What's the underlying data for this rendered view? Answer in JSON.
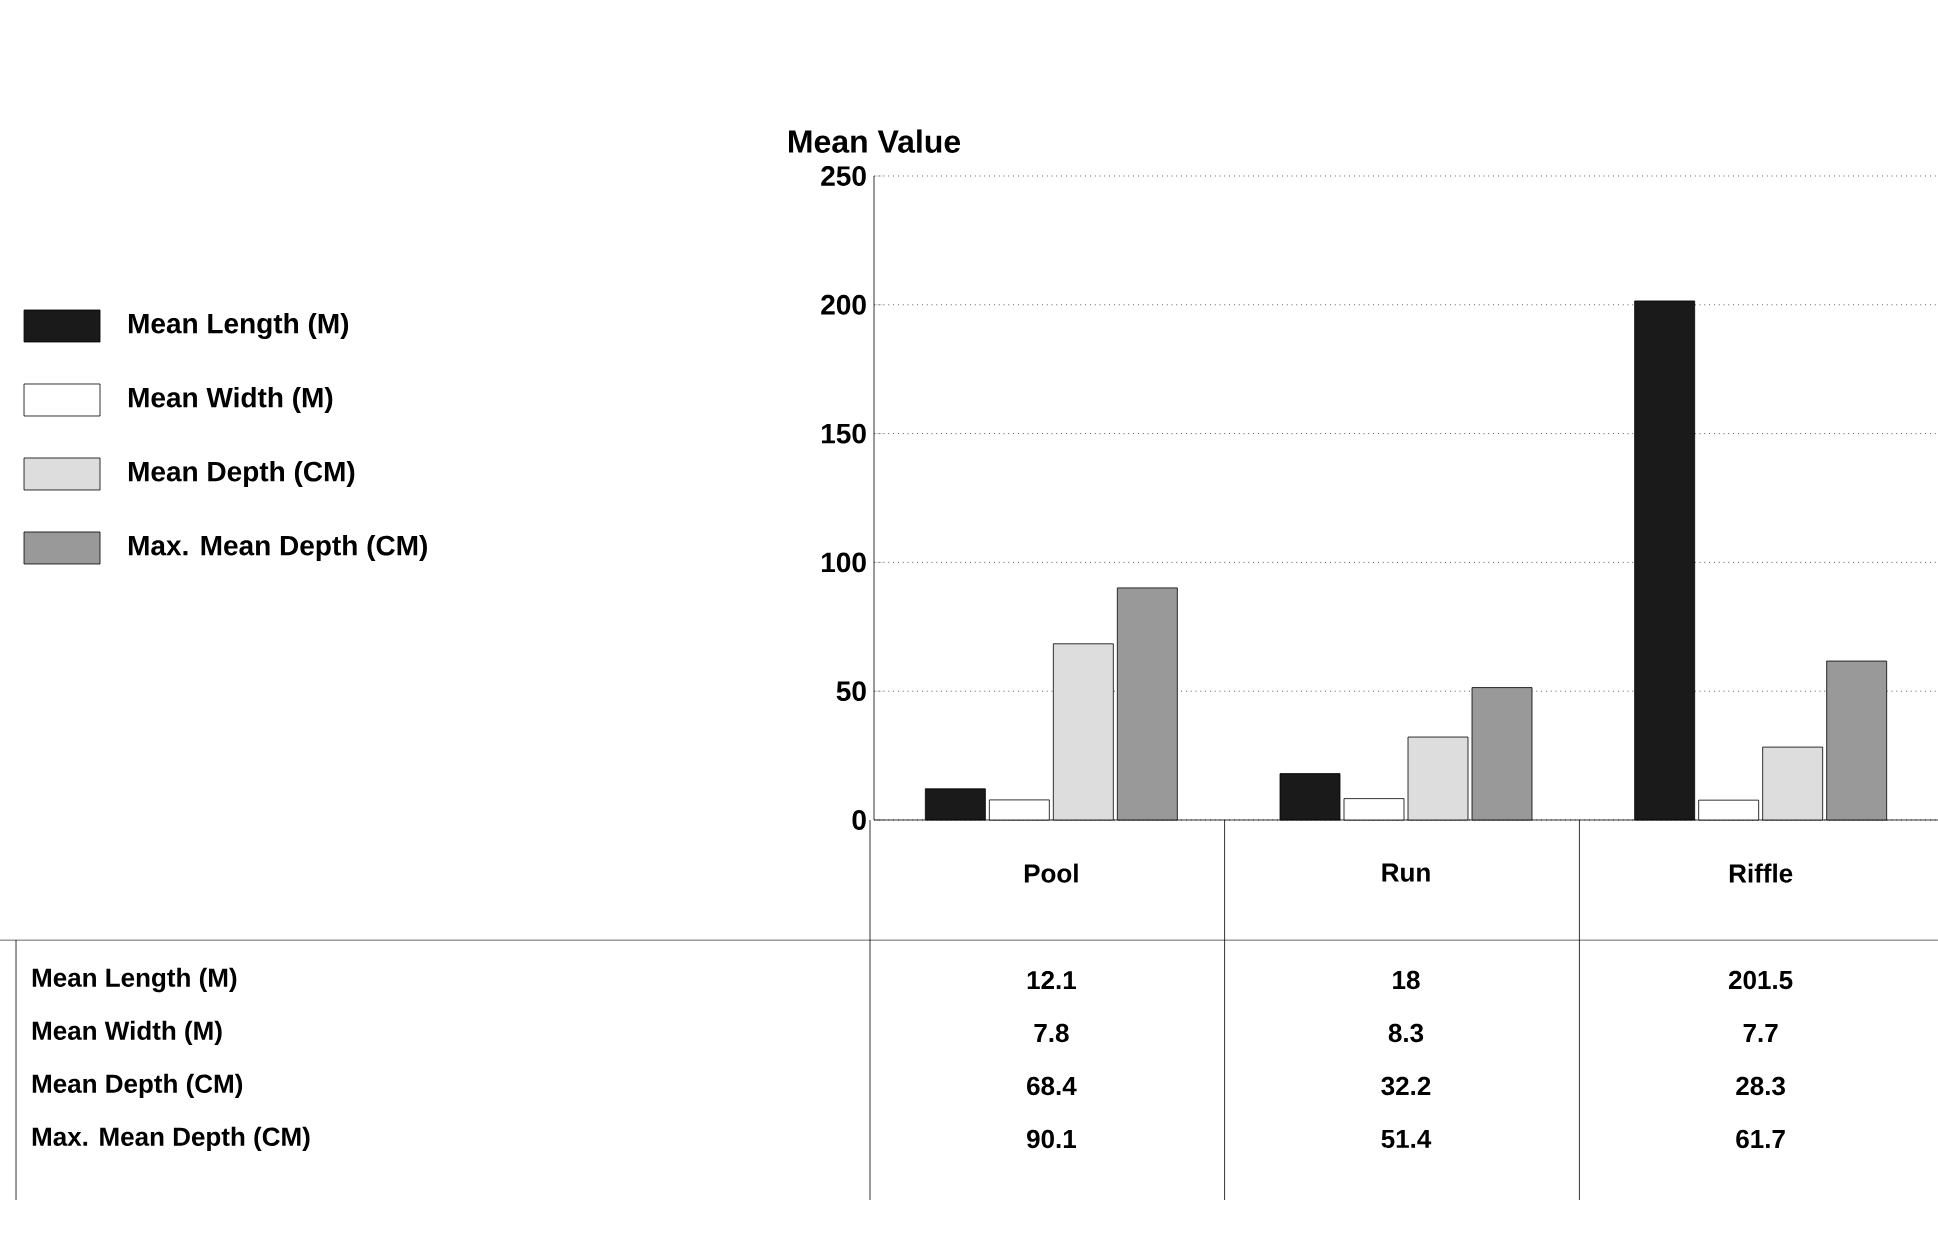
{
  "chart_data": {
    "type": "bar",
    "title": "Mean Value",
    "categories": [
      "Pool",
      "Run",
      "Riffle"
    ],
    "series": [
      {
        "name": "Mean Length (M)",
        "color": "#1a1a1a",
        "values": [
          12.1,
          18,
          201.5
        ]
      },
      {
        "name": "Mean Width (M)",
        "color": "#ffffff",
        "values": [
          7.8,
          8.3,
          7.7
        ]
      },
      {
        "name": "Mean Depth (CM)",
        "color": "#dddddd",
        "values": [
          68.4,
          32.2,
          28.3
        ]
      },
      {
        "name": "Max. Mean Depth (CM)",
        "color": "#999999",
        "values": [
          90.1,
          51.4,
          61.7
        ]
      }
    ],
    "ylim": [
      0,
      250
    ],
    "yticks": [
      0,
      50,
      100,
      150,
      200,
      250
    ],
    "grid": "y",
    "legend": "left",
    "data_labels": true
  }
}
